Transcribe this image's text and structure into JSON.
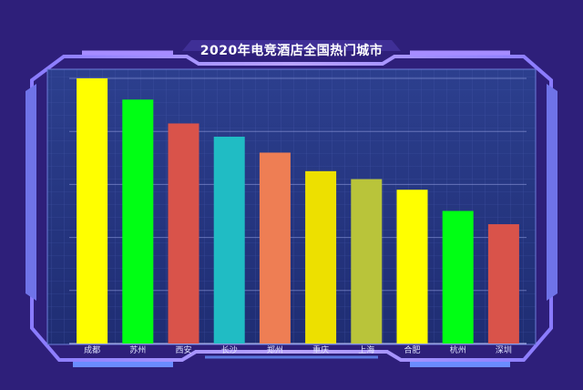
{
  "chart_data": {
    "type": "bar",
    "title": "2020年电竞酒店全国热门城市",
    "categories": [
      "成都",
      "苏州",
      "西安",
      "长沙",
      "郑州",
      "重庆",
      "上海",
      "合肥",
      "杭州",
      "深圳"
    ],
    "values": [
      100,
      92,
      83,
      78,
      72,
      65,
      62,
      58,
      50,
      45
    ],
    "colors": [
      "#ffff00",
      "#00ff14",
      "#d9534a",
      "#20bcc4",
      "#ee7e54",
      "#ede000",
      "#b9c43a",
      "#ffff00",
      "#00ff14",
      "#d9534a"
    ],
    "ylim": [
      0,
      100
    ],
    "gridlines": true,
    "xlabel": "",
    "ylabel": ""
  }
}
